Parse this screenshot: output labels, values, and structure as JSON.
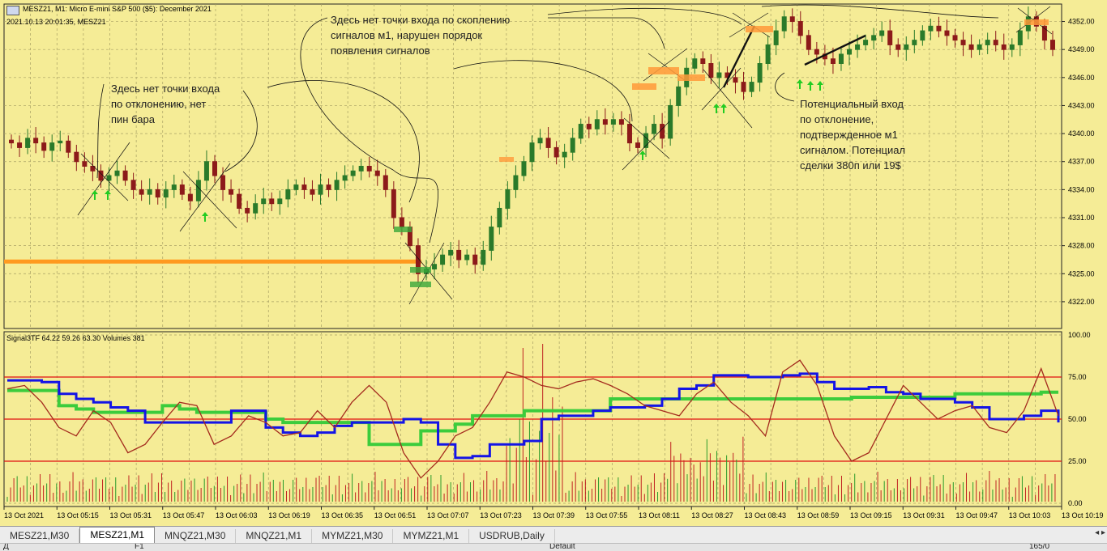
{
  "chart_window": {
    "symbol_line": "MESZ21, M1:  Micro E-mini S&P 500 ($5): December 2021",
    "datetime_line": "2021.10.13 20:01:35, MESZ21",
    "indicator_line": "Signal3TF 64.22 59.26 63.30 Volumes 381"
  },
  "annotations": {
    "note1": [
      "Здесь нет точки входа",
      "по отклонению, нет",
      "пин бара"
    ],
    "note2": [
      "Здесь нет точки входа по скоплению",
      "сигналов м1, нарушен порядок",
      "появления сигналов"
    ],
    "note3": [
      "Потенциальный вход",
      "по отклонение,",
      "подтвержденное м1",
      "сигналом. Потенциал",
      "сделки 380п или 19$"
    ]
  },
  "tabs": [
    "MESZ21,M30",
    "MESZ21,M1",
    "MNQZ21,M30",
    "MNQZ21,M1",
    "MYMZ21,M30",
    "MYMZ21,M1",
    "USDRUB,Daily"
  ],
  "active_tab": "MESZ21,M1",
  "status": {
    "left": "Д",
    "middle": "F1",
    "right": "Default",
    "far_right": "165/0"
  },
  "colors": {
    "background": "#f5ec96",
    "grid": "#a8a064",
    "bull_candle": "#2a7a2a",
    "bear_candle": "#8c1a1a",
    "level_line": "#ff9a1f",
    "blue_line": "#1414e6",
    "green_line": "#3ccc3c",
    "red_line": "#a42b1e",
    "hline": "#e01010"
  },
  "chart_data": [
    {
      "type": "candlestick",
      "symbol": "MESZ21",
      "timeframe": "M1",
      "ylim": [
        4320,
        4353
      ],
      "y_ticks": [
        4322,
        4325,
        4328,
        4331,
        4334,
        4337,
        4340,
        4343,
        4346,
        4349,
        4352
      ],
      "x_ticks": [
        "13 Oct 2021",
        "13 Oct 05:15",
        "13 Oct 05:31",
        "13 Oct 05:47",
        "13 Oct 06:03",
        "13 Oct 06:19",
        "13 Oct 06:35",
        "13 Oct 06:51",
        "13 Oct 07:07",
        "13 Oct 07:23",
        "13 Oct 07:39",
        "13 Oct 07:55",
        "13 Oct 08:11",
        "13 Oct 08:27",
        "13 Oct 08:43",
        "13 Oct 08:59",
        "13 Oct 09:15",
        "13 Oct 09:31",
        "13 Oct 09:47",
        "13 Oct 10:03",
        "13 Oct 10:19"
      ],
      "horizontal_level": 4326.3,
      "close_series": [
        4339,
        4338.5,
        4339.5,
        4339,
        4338.2,
        4339,
        4339.2,
        4338,
        4337,
        4336.5,
        4336,
        4335,
        4335.5,
        4336,
        4335,
        4334,
        4333.5,
        4334,
        4333.2,
        4334,
        4334.5,
        4333.5,
        4332.8,
        4335,
        4337,
        4335.5,
        4334,
        4333.5,
        4332,
        4331.5,
        4332.5,
        4333,
        4332.5,
        4333,
        4334,
        4334.5,
        4334,
        4333.5,
        4334.5,
        4334,
        4335,
        4335.5,
        4336,
        4336.5,
        4336,
        4335.5,
        4334,
        4331,
        4330,
        4328,
        4325,
        4325.5,
        4326,
        4327,
        4327.5,
        4326.5,
        4327,
        4326,
        4327.5,
        4330,
        4332,
        4334,
        4335.5,
        4337,
        4339,
        4339.5,
        4338.5,
        4337.5,
        4338,
        4339.5,
        4341,
        4340.5,
        4341.5,
        4341,
        4341.5,
        4341,
        4339,
        4338.5,
        4340,
        4341,
        4339.5,
        4343,
        4345,
        4347,
        4348,
        4347.5,
        4346,
        4346.5,
        4346,
        4345.5,
        4344.5,
        4345.5,
        4347.5,
        4349.5,
        4351,
        4352.5,
        4352,
        4350.5,
        4349,
        4348.5,
        4348,
        4347.5,
        4348.5,
        4349,
        4349.5,
        4350,
        4350.5,
        4351,
        4349.5,
        4349,
        4349.5,
        4350,
        4351,
        4351.5,
        4351,
        4350.5,
        4350,
        4349.5,
        4349,
        4349.5,
        4350,
        4349.5,
        4349,
        4349.5,
        4351,
        4352.5,
        4351.5,
        4350,
        4349
      ]
    },
    {
      "type": "line",
      "name": "Signal3TF 64.22 59.26 63.30 Volumes 381",
      "ylim": [
        0,
        100
      ],
      "y_ticks": [
        0,
        25,
        50,
        75,
        100
      ],
      "reference_levels": [
        75,
        50,
        25
      ],
      "series": [
        {
          "name": "blue",
          "values": [
            73,
            73,
            72,
            65,
            62,
            60,
            57,
            55,
            48,
            48,
            48,
            48,
            48,
            55,
            55,
            45,
            42,
            40,
            42,
            46,
            48,
            48,
            48,
            50,
            48,
            35,
            27,
            28,
            35,
            35,
            37,
            50,
            52,
            52,
            55,
            57,
            57,
            58,
            62,
            68,
            70,
            76,
            76,
            75,
            75,
            76,
            77,
            72,
            68,
            68,
            69,
            66,
            65,
            62,
            62,
            60,
            57,
            50,
            50,
            52,
            55,
            48
          ]
        },
        {
          "name": "green",
          "values": [
            67,
            67,
            67,
            58,
            56,
            54,
            54,
            54,
            54,
            58,
            56,
            54,
            54,
            54,
            54,
            50,
            48,
            48,
            48,
            48,
            48,
            35,
            35,
            35,
            43,
            43,
            47,
            52,
            52,
            52,
            55,
            55,
            55,
            55,
            55,
            62,
            62,
            62,
            62,
            62,
            62,
            62,
            62,
            62,
            62,
            62,
            62,
            62,
            62,
            63,
            63,
            63,
            63,
            63,
            63,
            65,
            65,
            65,
            65,
            65,
            66,
            66
          ]
        },
        {
          "name": "red",
          "values": [
            68,
            70,
            60,
            45,
            40,
            55,
            48,
            30,
            35,
            48,
            60,
            58,
            35,
            40,
            52,
            48,
            40,
            42,
            55,
            45,
            60,
            70,
            60,
            30,
            15,
            25,
            40,
            45,
            60,
            78,
            75,
            70,
            68,
            72,
            74,
            70,
            65,
            58,
            55,
            52,
            65,
            72,
            60,
            52,
            40,
            78,
            85,
            70,
            40,
            25,
            30,
            50,
            70,
            60,
            50,
            55,
            58,
            45,
            42,
            55,
            80,
            52
          ]
        }
      ]
    }
  ]
}
